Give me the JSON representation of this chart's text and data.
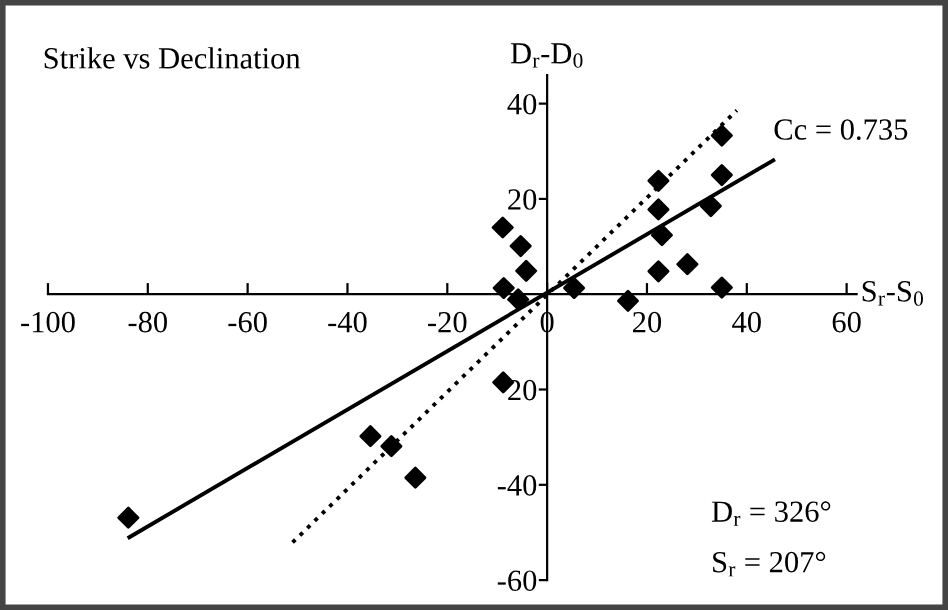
{
  "chart_data": {
    "type": "scatter",
    "title": "Strike vs Declination",
    "xlabel": "S$_{r}$-S$_{0}$",
    "ylabel": "D$_{r}$-D$_{0}$",
    "xlim": [
      -100,
      62
    ],
    "ylim": [
      -60,
      46
    ],
    "xticks": [
      -100,
      -80,
      -60,
      -40,
      -20,
      0,
      20,
      40,
      60
    ],
    "yticks": [
      -60,
      -40,
      {
        "value": -20,
        "label": "20"
      },
      20,
      40
    ],
    "grid": false,
    "legend": false,
    "marker": "diamond",
    "series": [
      {
        "color": "#000000",
        "x": [
          -8.9,
          -5.3,
          -4.2,
          -8.7,
          -5.8,
          5.4,
          16.2,
          22.3,
          22.3,
          23.0,
          22.3,
          28.1,
          32.8,
          35.0,
          35.0,
          35.0,
          -8.8,
          -35.4,
          -31.2,
          -26.4,
          -83.9
        ],
        "values": [
          14.0,
          10.1,
          4.9,
          1.3,
          -1.1,
          1.3,
          -1.4,
          23.8,
          17.8,
          12.4,
          4.8,
          6.3,
          18.5,
          33.3,
          25.0,
          1.4,
          -18.5,
          -29.8,
          -31.9,
          -38.5,
          -46.9
        ]
      },
      {
        "type": "line",
        "name": "Cc = 0.735",
        "color": "#000000",
        "marker": "none",
        "line_style": "solid",
        "x": [
          -83.7,
          45.3
        ],
        "values": [
          -51.0,
          28.1
        ]
      },
      {
        "type": "line",
        "color": "#000000",
        "marker": "none",
        "line_style": "dotted",
        "x": [
          -51.0,
          38.0
        ],
        "values": [
          -52.1,
          38.6
        ]
      }
    ],
    "annotations": [
      "D$_{r}$ = 326°",
      "S$_{r}$ = 207°"
    ]
  }
}
